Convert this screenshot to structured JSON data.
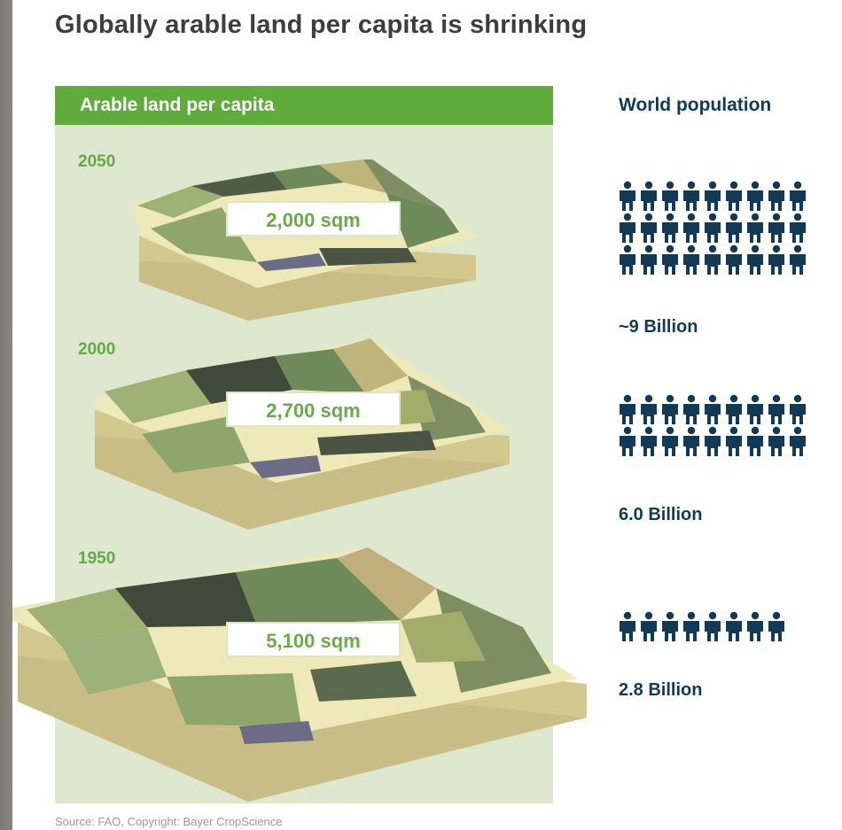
{
  "title": "Globally arable land per capita is shrinking",
  "panel_header": "Arable land per capita",
  "population_header": "World population",
  "source": "Source: FAO, Copyright: Bayer CropScience",
  "colors": {
    "green_header": "#5fac3c",
    "panel_bg": "#dde8cf",
    "people": "#123a57",
    "year_text": "#64a84a"
  },
  "icon": "person-icon",
  "chart_data": {
    "type": "table",
    "columns": [
      "year",
      "arable_land_per_capita",
      "world_population"
    ],
    "rows": [
      {
        "year": "2050",
        "area": "2,000 sqm",
        "area_value": 2000,
        "population": "~9 Billion",
        "population_value": 9.0,
        "icon_count": 27
      },
      {
        "year": "2000",
        "area": "2,700 sqm",
        "area_value": 2700,
        "population": "6.0 Billion",
        "population_value": 6.0,
        "icon_count": 18
      },
      {
        "year": "1950",
        "area": "5,100 sqm",
        "area_value": 5100,
        "population": "2.8 Billion",
        "population_value": 2.8,
        "icon_count": 8
      }
    ],
    "units": {
      "area": "sqm",
      "population": "Billion"
    }
  }
}
